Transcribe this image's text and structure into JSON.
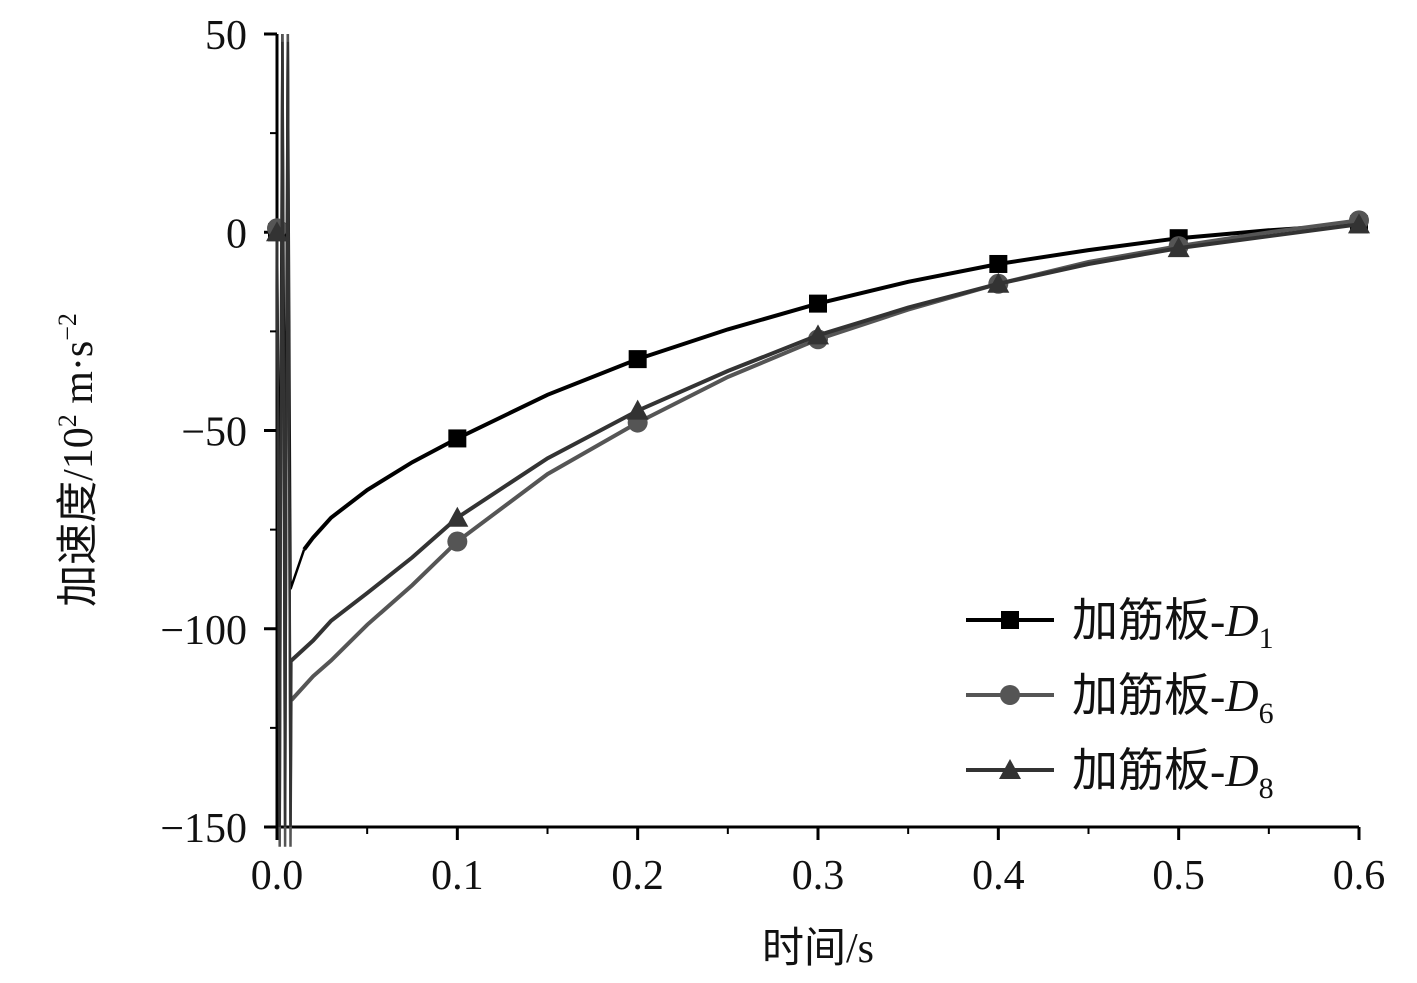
{
  "chart_data": {
    "type": "line",
    "xlabel": "时间/s",
    "ylabel": {
      "prefix": "加速度/10",
      "exp1": "2",
      "mid": " m·s",
      "exp2": "−2"
    },
    "xlim": [
      0,
      0.6
    ],
    "ylim": [
      -150,
      50
    ],
    "xticks": [
      {
        "value": 0.0,
        "label": "0.0"
      },
      {
        "value": 0.1,
        "label": "0.1"
      },
      {
        "value": 0.2,
        "label": "0.2"
      },
      {
        "value": 0.3,
        "label": "0.3"
      },
      {
        "value": 0.4,
        "label": "0.4"
      },
      {
        "value": 0.5,
        "label": "0.5"
      },
      {
        "value": 0.6,
        "label": "0.6"
      }
    ],
    "yticks": [
      {
        "value": 50,
        "label": "50"
      },
      {
        "value": 0,
        "label": "0"
      },
      {
        "value": -50,
        "label": "−50"
      },
      {
        "value": -100,
        "label": "−100"
      },
      {
        "value": -150,
        "label": "−150"
      }
    ],
    "grid": false,
    "legend_position": "bottom-right",
    "series": [
      {
        "name": "加筋板-D",
        "subscript": "1",
        "marker": "square",
        "color": "#000000",
        "x": [
          0.0,
          0.1,
          0.2,
          0.3,
          0.4,
          0.5,
          0.6
        ],
        "y": [
          0,
          -52,
          -32,
          -18,
          -8,
          -1.5,
          2
        ],
        "curve": [
          [
            0.015,
            -80
          ],
          [
            0.02,
            -77
          ],
          [
            0.03,
            -72
          ],
          [
            0.05,
            -65
          ],
          [
            0.075,
            -58
          ],
          [
            0.1,
            -52
          ],
          [
            0.15,
            -41
          ],
          [
            0.2,
            -32
          ],
          [
            0.25,
            -24.5
          ],
          [
            0.3,
            -18
          ],
          [
            0.35,
            -12.5
          ],
          [
            0.4,
            -8
          ],
          [
            0.45,
            -4.5
          ],
          [
            0.5,
            -1.5
          ],
          [
            0.55,
            0.5
          ],
          [
            0.6,
            2
          ]
        ],
        "spike_peaks": [
          50,
          -90
        ]
      },
      {
        "name": "加筋板-D",
        "subscript": "6",
        "marker": "circle",
        "color": "#555555",
        "x": [
          0.0,
          0.1,
          0.2,
          0.3,
          0.4,
          0.5,
          0.6
        ],
        "y": [
          1,
          -78,
          -48,
          -27,
          -13,
          -3.5,
          3
        ],
        "curve": [
          [
            0.008,
            -118
          ],
          [
            0.02,
            -112
          ],
          [
            0.03,
            -108
          ],
          [
            0.05,
            -99
          ],
          [
            0.075,
            -89
          ],
          [
            0.1,
            -78
          ],
          [
            0.15,
            -61
          ],
          [
            0.2,
            -48
          ],
          [
            0.25,
            -36.5
          ],
          [
            0.3,
            -27
          ],
          [
            0.35,
            -19.5
          ],
          [
            0.4,
            -13
          ],
          [
            0.45,
            -7.5
          ],
          [
            0.5,
            -3.5
          ],
          [
            0.55,
            0
          ],
          [
            0.6,
            3
          ]
        ],
        "spike_peaks": [
          50,
          -155
        ]
      },
      {
        "name": "加筋板-D",
        "subscript": "8",
        "marker": "triangle",
        "color": "#333333",
        "x": [
          0.0,
          0.1,
          0.2,
          0.3,
          0.4,
          0.5,
          0.6
        ],
        "y": [
          0,
          -72,
          -45,
          -26,
          -13,
          -4,
          2
        ],
        "curve": [
          [
            0.008,
            -108
          ],
          [
            0.02,
            -103
          ],
          [
            0.03,
            -98
          ],
          [
            0.05,
            -91
          ],
          [
            0.075,
            -82
          ],
          [
            0.1,
            -72
          ],
          [
            0.15,
            -57
          ],
          [
            0.2,
            -45
          ],
          [
            0.25,
            -35
          ],
          [
            0.3,
            -26
          ],
          [
            0.35,
            -19
          ],
          [
            0.4,
            -13
          ],
          [
            0.45,
            -8
          ],
          [
            0.5,
            -4
          ],
          [
            0.55,
            -1
          ],
          [
            0.6,
            2
          ]
        ],
        "spike_peaks": [
          48,
          -150
        ]
      }
    ]
  }
}
